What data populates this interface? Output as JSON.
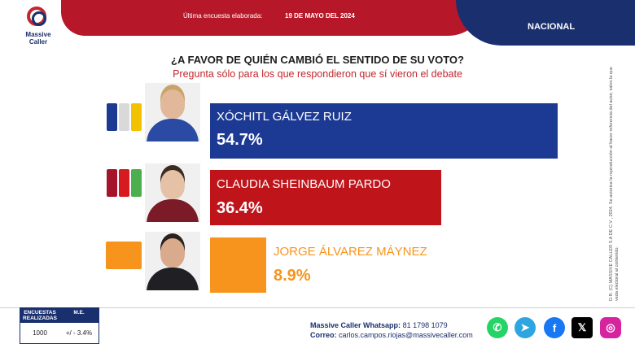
{
  "brand": {
    "line1": "Massive",
    "line2": "Caller"
  },
  "header": {
    "survey_label": "Última encuesta elaborada:",
    "survey_date": "19 DE MAYO DEL 2024",
    "scope": "NACIONAL"
  },
  "question": "¿A FAVOR DE QUIÉN CAMBIÓ EL SENTIDO DE SU VOTO?",
  "subquestion": "Pregunta sólo para los que respondieron que sí vieron el debate",
  "chart_data": {
    "type": "bar",
    "orientation": "horizontal",
    "title": "¿A FAVOR DE QUIÉN CAMBIÓ EL SENTIDO DE SU VOTO?",
    "subtitle": "Pregunta sólo para los que respondieron que sí vieron el debate",
    "categories": [
      "XÓCHITL GÁLVEZ RUIZ",
      "CLAUDIA SHEINBAUM PARDO",
      "JORGE ÁLVAREZ MÁYNEZ"
    ],
    "values": [
      54.7,
      36.4,
      8.9
    ],
    "value_labels": [
      "54.7%",
      "36.4%",
      "8.9%"
    ],
    "colors": [
      "#1c3a94",
      "#c0141b",
      "#f7941d"
    ],
    "xlim": [
      0,
      100
    ]
  },
  "candidates": [
    {
      "name": "XÓCHITL GÁLVEZ RUIZ",
      "value_label": "54.7%",
      "bar_color": "#1c3a94",
      "text_color": "#ffffff",
      "value_color": "#ffffff",
      "parties": [
        "PAN",
        "PRI",
        "PRD"
      ]
    },
    {
      "name": "CLAUDIA SHEINBAUM PARDO",
      "value_label": "36.4%",
      "bar_color": "#c0141b",
      "text_color": "#ffffff",
      "value_color": "#ffffff",
      "parties": [
        "morena",
        "PT",
        "VERDE"
      ]
    },
    {
      "name": "JORGE ÁLVAREZ MÁYNEZ",
      "value_label": "8.9%",
      "bar_color": "#f7941d",
      "text_color": "#f7941d",
      "value_color": "#f7941d",
      "parties": [
        "MOVIMIENTO CIUDADANO"
      ]
    }
  ],
  "methodology": {
    "col1_header": "ENCUESTAS REALIZADAS",
    "col2_header": "M.E.",
    "col1_value": "1000",
    "col2_value": "+/ - 3.4%"
  },
  "contact": {
    "whatsapp_label": "Massive Caller Whatsapp:",
    "whatsapp_value": "81 1798 1079",
    "email_label": "Correo:",
    "email_value": "carlos.campos.riojas@massivecaller.com"
  },
  "social": [
    {
      "icon": "whatsapp-icon",
      "color": "#25d366"
    },
    {
      "icon": "telegram-icon",
      "color": "#2ca5e0"
    },
    {
      "icon": "facebook-icon",
      "color": "#1877f2"
    },
    {
      "icon": "x-icon",
      "color": "#000000"
    },
    {
      "icon": "instagram-icon",
      "color": "#d6249f"
    }
  ],
  "legal": "D.R. (C) MASSIVE CALLER S.A DE C.V , 2024. Se autoriza la reproducción al hacer referencia del autor, salvo la que veda electoral al contenido."
}
